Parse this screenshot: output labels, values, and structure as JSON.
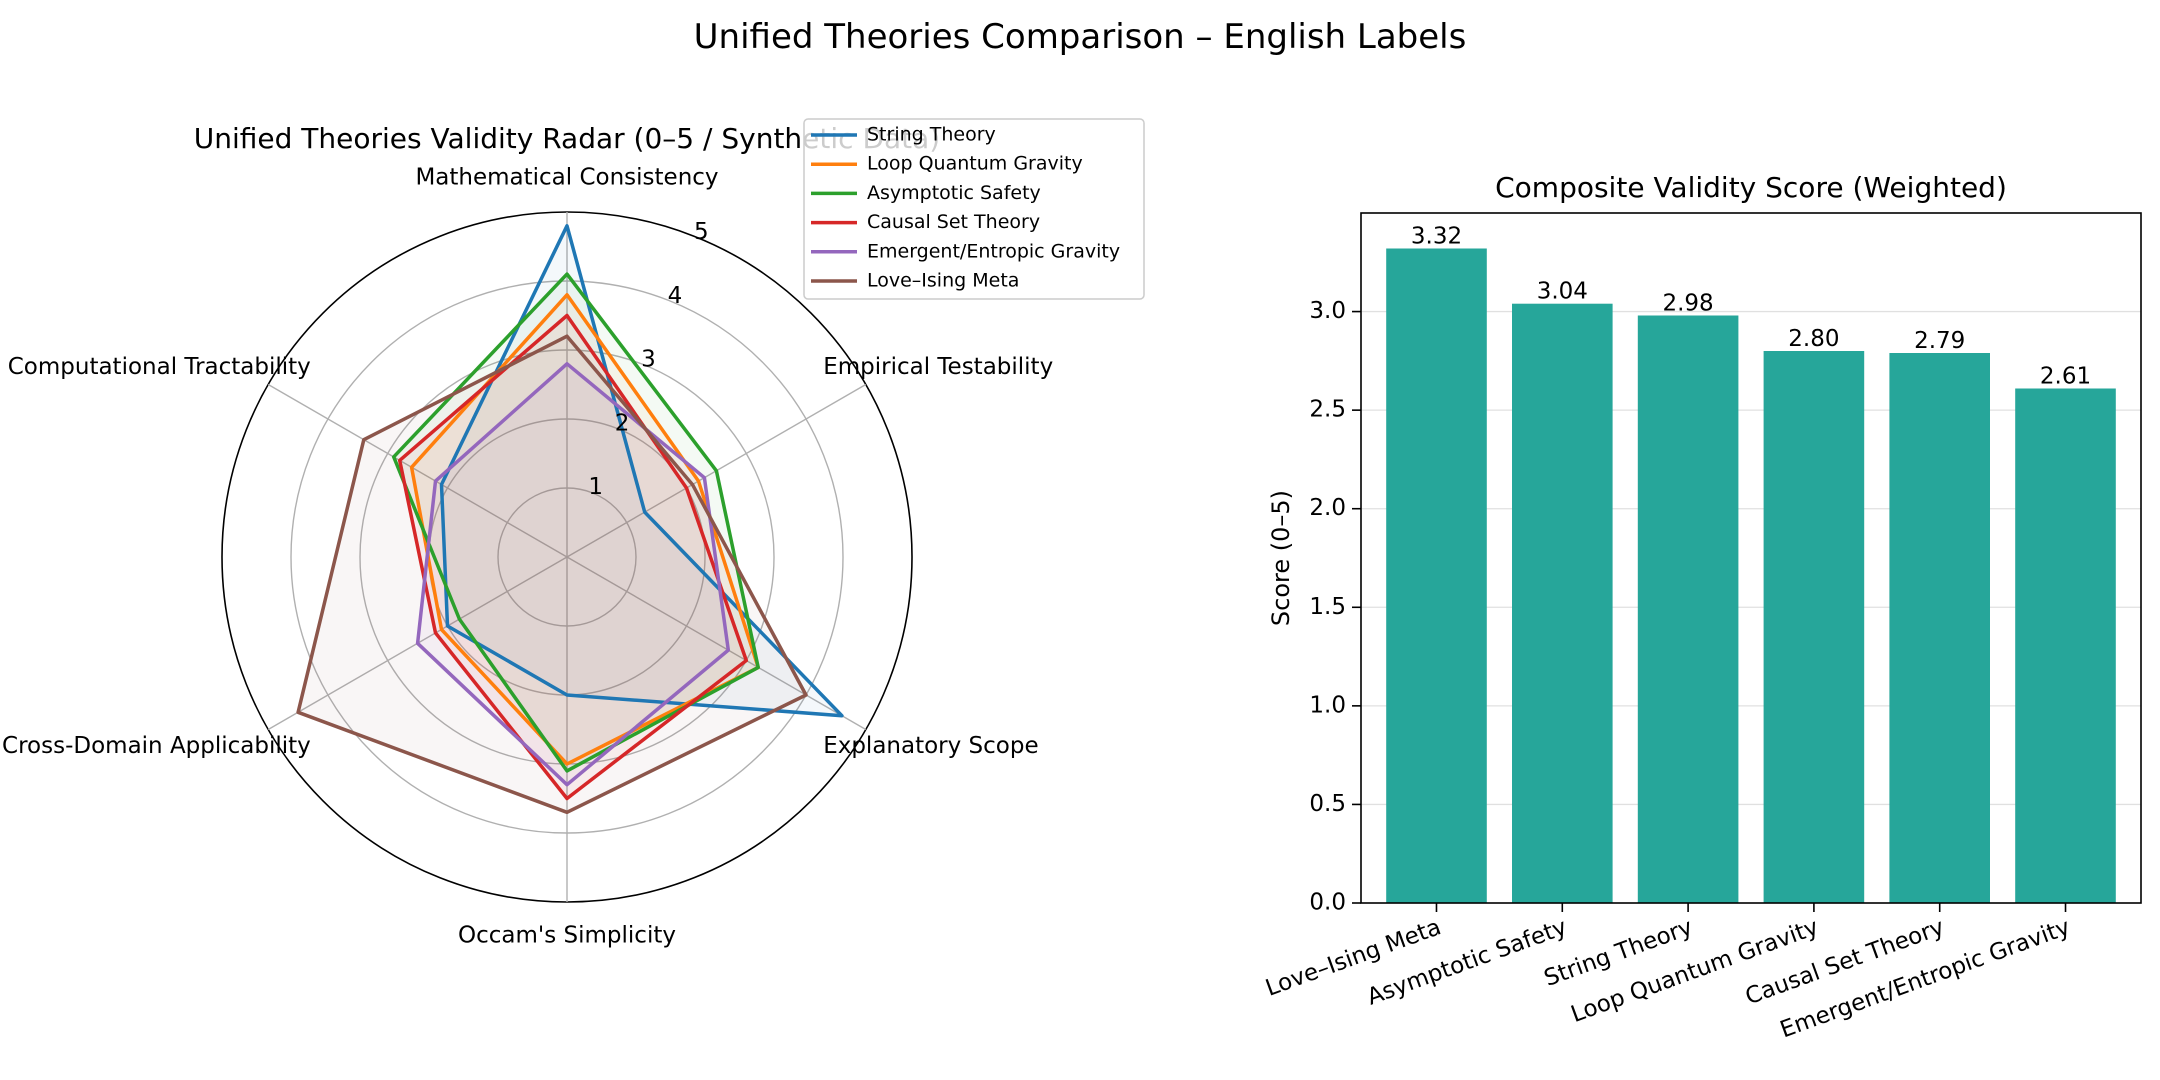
{
  "figure": {
    "suptitle": "Unified Theories Comparison – English Labels"
  },
  "chart_data": [
    {
      "type": "radar",
      "title": "Unified Theories Validity Radar (0–5 / Synthetic Data)",
      "axes": [
        "Mathematical Consistency",
        "Empirical Testability",
        "Explanatory Scope",
        "Occam's Simplicity",
        "Cross-Domain Applicability",
        "Computational Tractability"
      ],
      "rlim": [
        0,
        5
      ],
      "rticks": [
        1,
        2,
        3,
        4,
        5
      ],
      "grid": true,
      "legend_position": "top-right",
      "series": [
        {
          "name": "String Theory",
          "values": [
            4.8,
            1.3,
            4.6,
            2.0,
            2.0,
            2.1
          ],
          "color": "#1f77b4"
        },
        {
          "name": "Loop Quantum Gravity",
          "values": [
            3.8,
            2.2,
            3.2,
            3.0,
            2.1,
            2.6
          ],
          "color": "#ff7f0e"
        },
        {
          "name": "Asymptotic Safety",
          "values": [
            4.1,
            2.5,
            3.2,
            3.1,
            1.8,
            2.9
          ],
          "color": "#2ca02c"
        },
        {
          "name": "Causal Set Theory",
          "values": [
            3.5,
            2.0,
            3.0,
            3.5,
            2.2,
            2.8
          ],
          "color": "#d62728"
        },
        {
          "name": "Emergent/Entropic Gravity",
          "values": [
            2.8,
            2.3,
            2.7,
            3.3,
            2.5,
            2.2
          ],
          "color": "#9467bd"
        },
        {
          "name": "Love–Ising Meta",
          "values": [
            3.2,
            2.1,
            4.0,
            3.7,
            4.5,
            3.4
          ],
          "color": "#8c564b"
        }
      ]
    },
    {
      "type": "bar",
      "title": "Composite Validity Score (Weighted)",
      "xlabel": "",
      "ylabel": "Score (0–5)",
      "categories": [
        "Love–Ising Meta",
        "Asymptotic Safety",
        "String Theory",
        "Loop Quantum Gravity",
        "Causal Set Theory",
        "Emergent/Entropic Gravity"
      ],
      "values": [
        3.32,
        3.04,
        2.98,
        2.8,
        2.79,
        2.61
      ],
      "value_labels": [
        "3.32",
        "3.04",
        "2.98",
        "2.80",
        "2.79",
        "2.61"
      ],
      "ylim": [
        0,
        3.5
      ],
      "yticks": [
        "0.0",
        "0.5",
        "1.0",
        "1.5",
        "2.0",
        "2.5",
        "3.0"
      ],
      "grid": true,
      "bar_color": "#26a69a"
    }
  ]
}
